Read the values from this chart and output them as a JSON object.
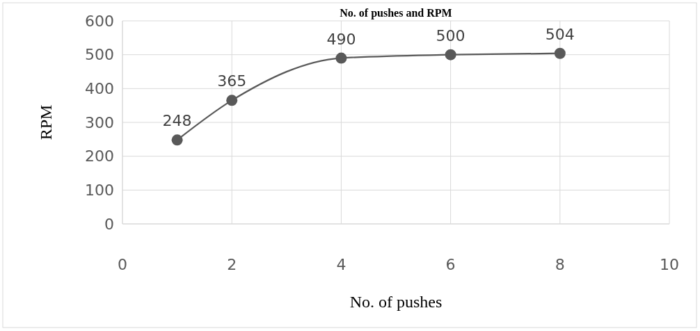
{
  "chart_data": {
    "type": "line",
    "title": "No. of pushes and RPM",
    "xlabel": "No. of pushes",
    "ylabel": "RPM",
    "x": [
      1,
      2,
      4,
      6,
      8
    ],
    "series": [
      {
        "color": "#595959",
        "values": [
          248,
          365,
          490,
          500,
          504
        ]
      }
    ],
    "xlim": [
      0,
      10
    ],
    "xticks": [
      0,
      2,
      4,
      6,
      8,
      10
    ],
    "ylim": [
      0,
      600
    ],
    "yticks": [
      0,
      100,
      200,
      300,
      400,
      500,
      600
    ],
    "grid": true,
    "marker": "circle",
    "data_labels": true
  }
}
